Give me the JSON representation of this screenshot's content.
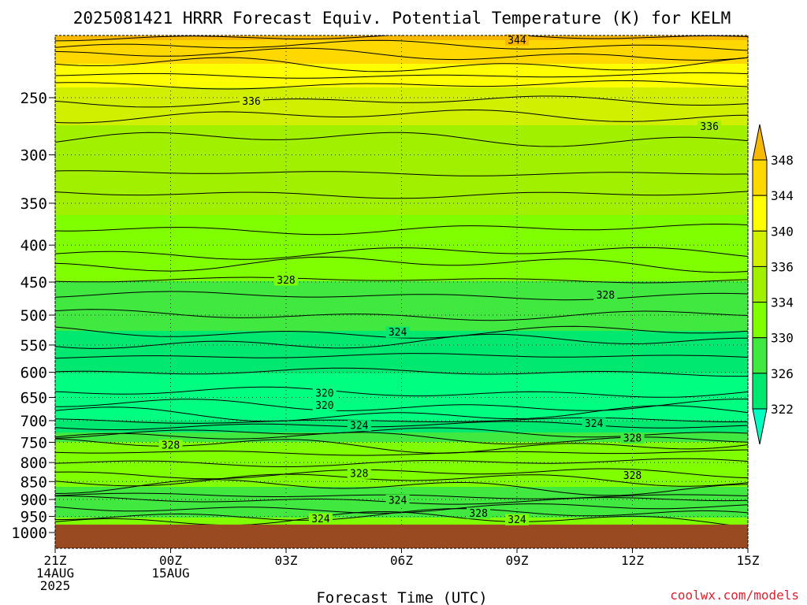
{
  "chart_data": {
    "type": "heatmap",
    "title": "2025081421 HRRR Forecast Equiv. Potential Temperature (K) for KELM",
    "xlabel": "Forecast Time (UTC)",
    "ylabel": "",
    "credit": "coolwx.com/models",
    "x_ticks": [
      {
        "hour": 0,
        "lines": [
          "21Z",
          "14AUG",
          "2025"
        ]
      },
      {
        "hour": 3,
        "lines": [
          "00Z",
          "15AUG"
        ]
      },
      {
        "hour": 6,
        "lines": [
          "03Z"
        ]
      },
      {
        "hour": 9,
        "lines": [
          "06Z"
        ]
      },
      {
        "hour": 12,
        "lines": [
          "09Z"
        ]
      },
      {
        "hour": 15,
        "lines": [
          "12Z"
        ]
      },
      {
        "hour": 18,
        "lines": [
          "15Z"
        ]
      }
    ],
    "xlim_hours": [
      0,
      18
    ],
    "y_ticks": [
      250,
      300,
      350,
      400,
      450,
      500,
      550,
      600,
      650,
      700,
      750,
      800,
      850,
      900,
      950,
      1000
    ],
    "y_axis": "pressure (hPa), log scale, inverted",
    "ylim_hpa": [
      1000,
      200
    ],
    "surface_pressure_hpa": 975,
    "colorbar": {
      "ticks": [
        348,
        344,
        340,
        336,
        334,
        330,
        326,
        322
      ],
      "colors": [
        "#f7b800",
        "#ffd800",
        "#ffff00",
        "#d0f000",
        "#a0f000",
        "#80ff00",
        "#40e840",
        "#00e870",
        "#00ff80",
        "#00ffc0"
      ]
    },
    "profile": [
      {
        "hpa": 200,
        "value": 348
      },
      {
        "hpa": 225,
        "value": 342
      },
      {
        "hpa": 250,
        "value": 336
      },
      {
        "hpa": 300,
        "value": 334
      },
      {
        "hpa": 400,
        "value": 331
      },
      {
        "hpa": 450,
        "value": 328
      },
      {
        "hpa": 500,
        "value": 326
      },
      {
        "hpa": 550,
        "value": 324
      },
      {
        "hpa": 600,
        "value": 322
      },
      {
        "hpa": 650,
        "value": 320
      },
      {
        "hpa": 700,
        "value": 322
      },
      {
        "hpa": 750,
        "value": 328
      },
      {
        "hpa": 850,
        "value": 329
      },
      {
        "hpa": 900,
        "value": 326
      },
      {
        "hpa": 950,
        "value": 328
      }
    ],
    "contour_labels": [
      {
        "text": "344",
        "hour": 12.0,
        "hpa": 208
      },
      {
        "text": "336",
        "hour": 5.1,
        "hpa": 253
      },
      {
        "text": "336",
        "hour": 17.0,
        "hpa": 274
      },
      {
        "text": "328",
        "hour": 6.0,
        "hpa": 447
      },
      {
        "text": "328",
        "hour": 14.3,
        "hpa": 469
      },
      {
        "text": "324",
        "hour": 8.9,
        "hpa": 528
      },
      {
        "text": "320",
        "hour": 7.0,
        "hpa": 641
      },
      {
        "text": "320",
        "hour": 7.0,
        "hpa": 667
      },
      {
        "text": "324",
        "hour": 7.9,
        "hpa": 711
      },
      {
        "text": "324",
        "hour": 14.0,
        "hpa": 706
      },
      {
        "text": "328",
        "hour": 3.0,
        "hpa": 757
      },
      {
        "text": "328",
        "hour": 15.0,
        "hpa": 740
      },
      {
        "text": "328",
        "hour": 7.9,
        "hpa": 828
      },
      {
        "text": "328",
        "hour": 15.0,
        "hpa": 834
      },
      {
        "text": "324",
        "hour": 8.9,
        "hpa": 902
      },
      {
        "text": "328",
        "hour": 11.0,
        "hpa": 940
      },
      {
        "text": "324",
        "hour": 6.9,
        "hpa": 957
      },
      {
        "text": "324",
        "hour": 12.0,
        "hpa": 960
      }
    ]
  }
}
